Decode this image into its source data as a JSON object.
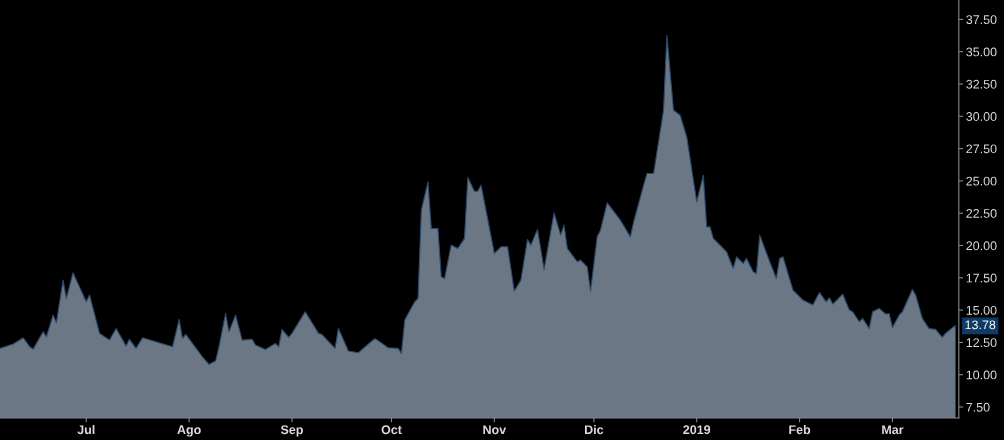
{
  "chart_data": {
    "type": "area",
    "x": [
      "2018-06-05",
      "2018-06-09",
      "2018-06-12",
      "2018-06-14",
      "2018-06-15",
      "2018-06-18",
      "2018-06-19",
      "2018-06-21",
      "2018-06-22",
      "2018-06-24",
      "2018-06-25",
      "2018-06-27",
      "2018-07-01",
      "2018-07-02",
      "2018-07-05",
      "2018-07-08",
      "2018-07-10",
      "2018-07-13",
      "2018-07-14",
      "2018-07-16",
      "2018-07-18",
      "2018-07-27",
      "2018-07-29",
      "2018-07-30",
      "2018-07-31",
      "2018-08-05",
      "2018-08-07",
      "2018-08-09",
      "2018-08-10",
      "2018-08-12",
      "2018-08-13",
      "2018-08-15",
      "2018-08-17",
      "2018-08-20",
      "2018-08-21",
      "2018-08-24",
      "2018-08-27",
      "2018-08-28",
      "2018-08-29",
      "2018-08-31",
      "2018-09-01",
      "2018-09-05",
      "2018-09-09",
      "2018-09-10",
      "2018-09-14",
      "2018-09-15",
      "2018-09-18",
      "2018-09-21",
      "2018-09-26",
      "2018-09-30",
      "2018-10-03",
      "2018-10-04",
      "2018-10-05",
      "2018-10-08",
      "2018-10-09",
      "2018-10-10",
      "2018-10-12",
      "2018-10-13",
      "2018-10-15",
      "2018-10-16",
      "2018-10-17",
      "2018-10-19",
      "2018-10-21",
      "2018-10-23",
      "2018-10-24",
      "2018-10-26",
      "2018-10-27",
      "2018-10-28",
      "2018-11-01",
      "2018-11-03",
      "2018-11-05",
      "2018-11-07",
      "2018-11-09",
      "2018-11-11",
      "2018-11-12",
      "2018-11-14",
      "2018-11-16",
      "2018-11-19",
      "2018-11-21",
      "2018-11-22",
      "2018-11-23",
      "2018-11-26",
      "2018-11-27",
      "2018-11-29",
      "2018-11-30",
      "2018-12-02",
      "2018-12-03",
      "2018-12-05",
      "2018-12-09",
      "2018-12-12",
      "2018-12-13",
      "2018-12-16",
      "2018-12-17",
      "2018-12-19",
      "2018-12-22",
      "2018-12-23",
      "2018-12-25",
      "2018-12-27",
      "2018-12-29",
      "2019-01-01",
      "2019-01-03",
      "2019-01-04",
      "2019-01-05",
      "2019-01-06",
      "2019-01-10",
      "2019-01-12",
      "2019-01-13",
      "2019-01-15",
      "2019-01-16",
      "2019-01-18",
      "2019-01-19",
      "2019-01-20",
      "2019-01-23",
      "2019-01-25",
      "2019-01-26",
      "2019-01-27",
      "2019-01-30",
      "2019-02-02",
      "2019-02-05",
      "2019-02-07",
      "2019-02-09",
      "2019-02-10",
      "2019-02-11",
      "2019-02-14",
      "2019-02-16",
      "2019-02-17",
      "2019-02-19",
      "2019-02-20",
      "2019-02-22",
      "2019-02-23",
      "2019-02-25",
      "2019-02-27",
      "2019-02-28",
      "2019-03-01",
      "2019-03-03",
      "2019-03-04",
      "2019-03-07",
      "2019-03-08",
      "2019-03-10",
      "2019-03-12",
      "2019-03-14",
      "2019-03-16",
      "2019-03-17",
      "2019-03-19",
      "2019-03-20"
    ],
    "series": [
      {
        "color": "#6b7785",
        "values": [
          12.04,
          12.37,
          12.86,
          12.16,
          11.98,
          13.32,
          12.94,
          14.61,
          14.02,
          17.32,
          15.9,
          17.89,
          15.64,
          16.16,
          13.2,
          12.68,
          13.58,
          12.22,
          12.74,
          12.04,
          12.86,
          12.16,
          14.28,
          12.81,
          13.12,
          11.39,
          10.8,
          11.08,
          12.16,
          14.74,
          13.32,
          14.61,
          12.68,
          12.74,
          12.3,
          11.96,
          12.42,
          12.16,
          13.51,
          12.89,
          13.2,
          14.87,
          13.2,
          13.12,
          12.04,
          13.58,
          11.83,
          11.7,
          12.81,
          12.09,
          12.04,
          11.65,
          14.23,
          15.64,
          15.9,
          22.74,
          24.93,
          21.32,
          21.32,
          17.58,
          17.45,
          20.03,
          19.77,
          20.55,
          25.26,
          24.2,
          24.2,
          24.67,
          19.39,
          19.9,
          19.9,
          16.47,
          17.32,
          20.47,
          20.03,
          21.24,
          18.15,
          22.53,
          20.8,
          21.58,
          19.77,
          18.74,
          18.87,
          18.35,
          16.47,
          20.67,
          21.19,
          23.3,
          21.96,
          20.67,
          21.83,
          24.67,
          25.57,
          25.57,
          30.47,
          36.27,
          30.47,
          30.08,
          28.4,
          23.38,
          25.44,
          21.44,
          21.44,
          20.55,
          19.51,
          18.23,
          19.12,
          18.61,
          19.0,
          17.96,
          17.84,
          20.8,
          18.74,
          17.45,
          19.0,
          19.12,
          16.55,
          15.78,
          15.39,
          16.37,
          15.64,
          15.95,
          15.47,
          16.24,
          15.0,
          14.87,
          14.1,
          14.36,
          13.58,
          14.87,
          15.13,
          14.69,
          14.74,
          13.66,
          14.61,
          14.87,
          16.6,
          16.16,
          14.36,
          13.58,
          13.51,
          12.89,
          13.2,
          13.63,
          13.78
        ]
      }
    ],
    "xlim": [
      "2018-06-05",
      "2019-03-21"
    ],
    "xticks": [
      {
        "value": "2018-07-01",
        "label": "Jul"
      },
      {
        "value": "2018-08-01",
        "label": "Ago"
      },
      {
        "value": "2018-09-01",
        "label": "Sep"
      },
      {
        "value": "2018-10-01",
        "label": "Oct"
      },
      {
        "value": "2018-11-01",
        "label": "Nov"
      },
      {
        "value": "2018-12-01",
        "label": "Dic"
      },
      {
        "value": "2019-01-01",
        "label": "2019"
      },
      {
        "value": "2019-02-01",
        "label": "Feb"
      },
      {
        "value": "2019-03-01",
        "label": "Mar"
      }
    ],
    "ylim": [
      6.65,
      39
    ],
    "yticks": [
      {
        "value": 7.5,
        "label": "7.50"
      },
      {
        "value": 10,
        "label": "10.00"
      },
      {
        "value": 12.5,
        "label": "12.50"
      },
      {
        "value": 15,
        "label": "15.00"
      },
      {
        "value": 17.5,
        "label": "17.50"
      },
      {
        "value": 20,
        "label": "20.00"
      },
      {
        "value": 22.5,
        "label": "22.50"
      },
      {
        "value": 25,
        "label": "25.00"
      },
      {
        "value": 27.5,
        "label": "27.50"
      },
      {
        "value": 30,
        "label": "30.00"
      },
      {
        "value": 32.5,
        "label": "32.50"
      },
      {
        "value": 35,
        "label": "35.00"
      },
      {
        "value": 37.5,
        "label": "37.50"
      }
    ],
    "annotations": [
      {
        "text": "13.78",
        "x": "2019-03-20",
        "y": 13.78
      }
    ],
    "grid": false,
    "legend": false
  }
}
